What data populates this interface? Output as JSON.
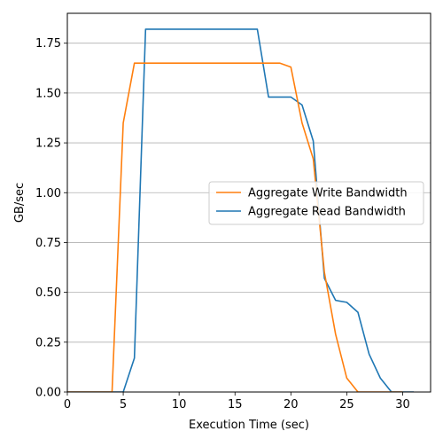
{
  "chart_data": {
    "type": "line",
    "title": "",
    "xlabel": "Execution Time (sec)",
    "ylabel": "GB/sec",
    "xlim": [
      0,
      32.5
    ],
    "ylim": [
      0,
      1.9
    ],
    "x_ticks": [
      0,
      5,
      10,
      15,
      20,
      25,
      30
    ],
    "y_ticks": [
      0.0,
      0.25,
      0.5,
      0.75,
      1.0,
      1.25,
      1.5,
      1.75
    ],
    "x_tick_labels": [
      "0",
      "5",
      "10",
      "15",
      "20",
      "25",
      "30"
    ],
    "y_tick_labels": [
      "0.00",
      "0.25",
      "0.50",
      "0.75",
      "1.00",
      "1.25",
      "1.50",
      "1.75"
    ],
    "grid": "horizontal",
    "legend_position": "center-right",
    "series": [
      {
        "name": "Aggregate Write Bandwidth",
        "color": "#ff7f0e",
        "x": [
          0,
          1,
          2,
          3,
          4,
          5,
          6,
          7,
          8,
          9,
          10,
          11,
          12,
          13,
          14,
          15,
          16,
          17,
          18,
          19,
          20,
          21,
          22,
          23,
          24,
          25,
          26,
          27,
          28,
          29,
          30
        ],
        "y": [
          0,
          0,
          0,
          0,
          0,
          1.35,
          1.65,
          1.65,
          1.65,
          1.65,
          1.65,
          1.65,
          1.65,
          1.65,
          1.65,
          1.65,
          1.65,
          1.65,
          1.65,
          1.65,
          1.63,
          1.35,
          1.17,
          0.6,
          0.29,
          0.07,
          0,
          0,
          0,
          0,
          0
        ]
      },
      {
        "name": "Aggregate Read Bandwidth",
        "color": "#1f77b4",
        "x": [
          0,
          1,
          2,
          3,
          4,
          5,
          6,
          7,
          8,
          9,
          10,
          11,
          12,
          13,
          14,
          15,
          16,
          17,
          18,
          19,
          20,
          21,
          22,
          23,
          24,
          25,
          26,
          27,
          28,
          29,
          30,
          31
        ],
        "y": [
          0,
          0,
          0,
          0,
          0,
          0,
          0.17,
          1.82,
          1.82,
          1.82,
          1.82,
          1.82,
          1.82,
          1.82,
          1.82,
          1.82,
          1.82,
          1.82,
          1.48,
          1.48,
          1.48,
          1.44,
          1.26,
          0.57,
          0.46,
          0.45,
          0.4,
          0.19,
          0.07,
          0,
          0,
          0
        ]
      }
    ]
  }
}
